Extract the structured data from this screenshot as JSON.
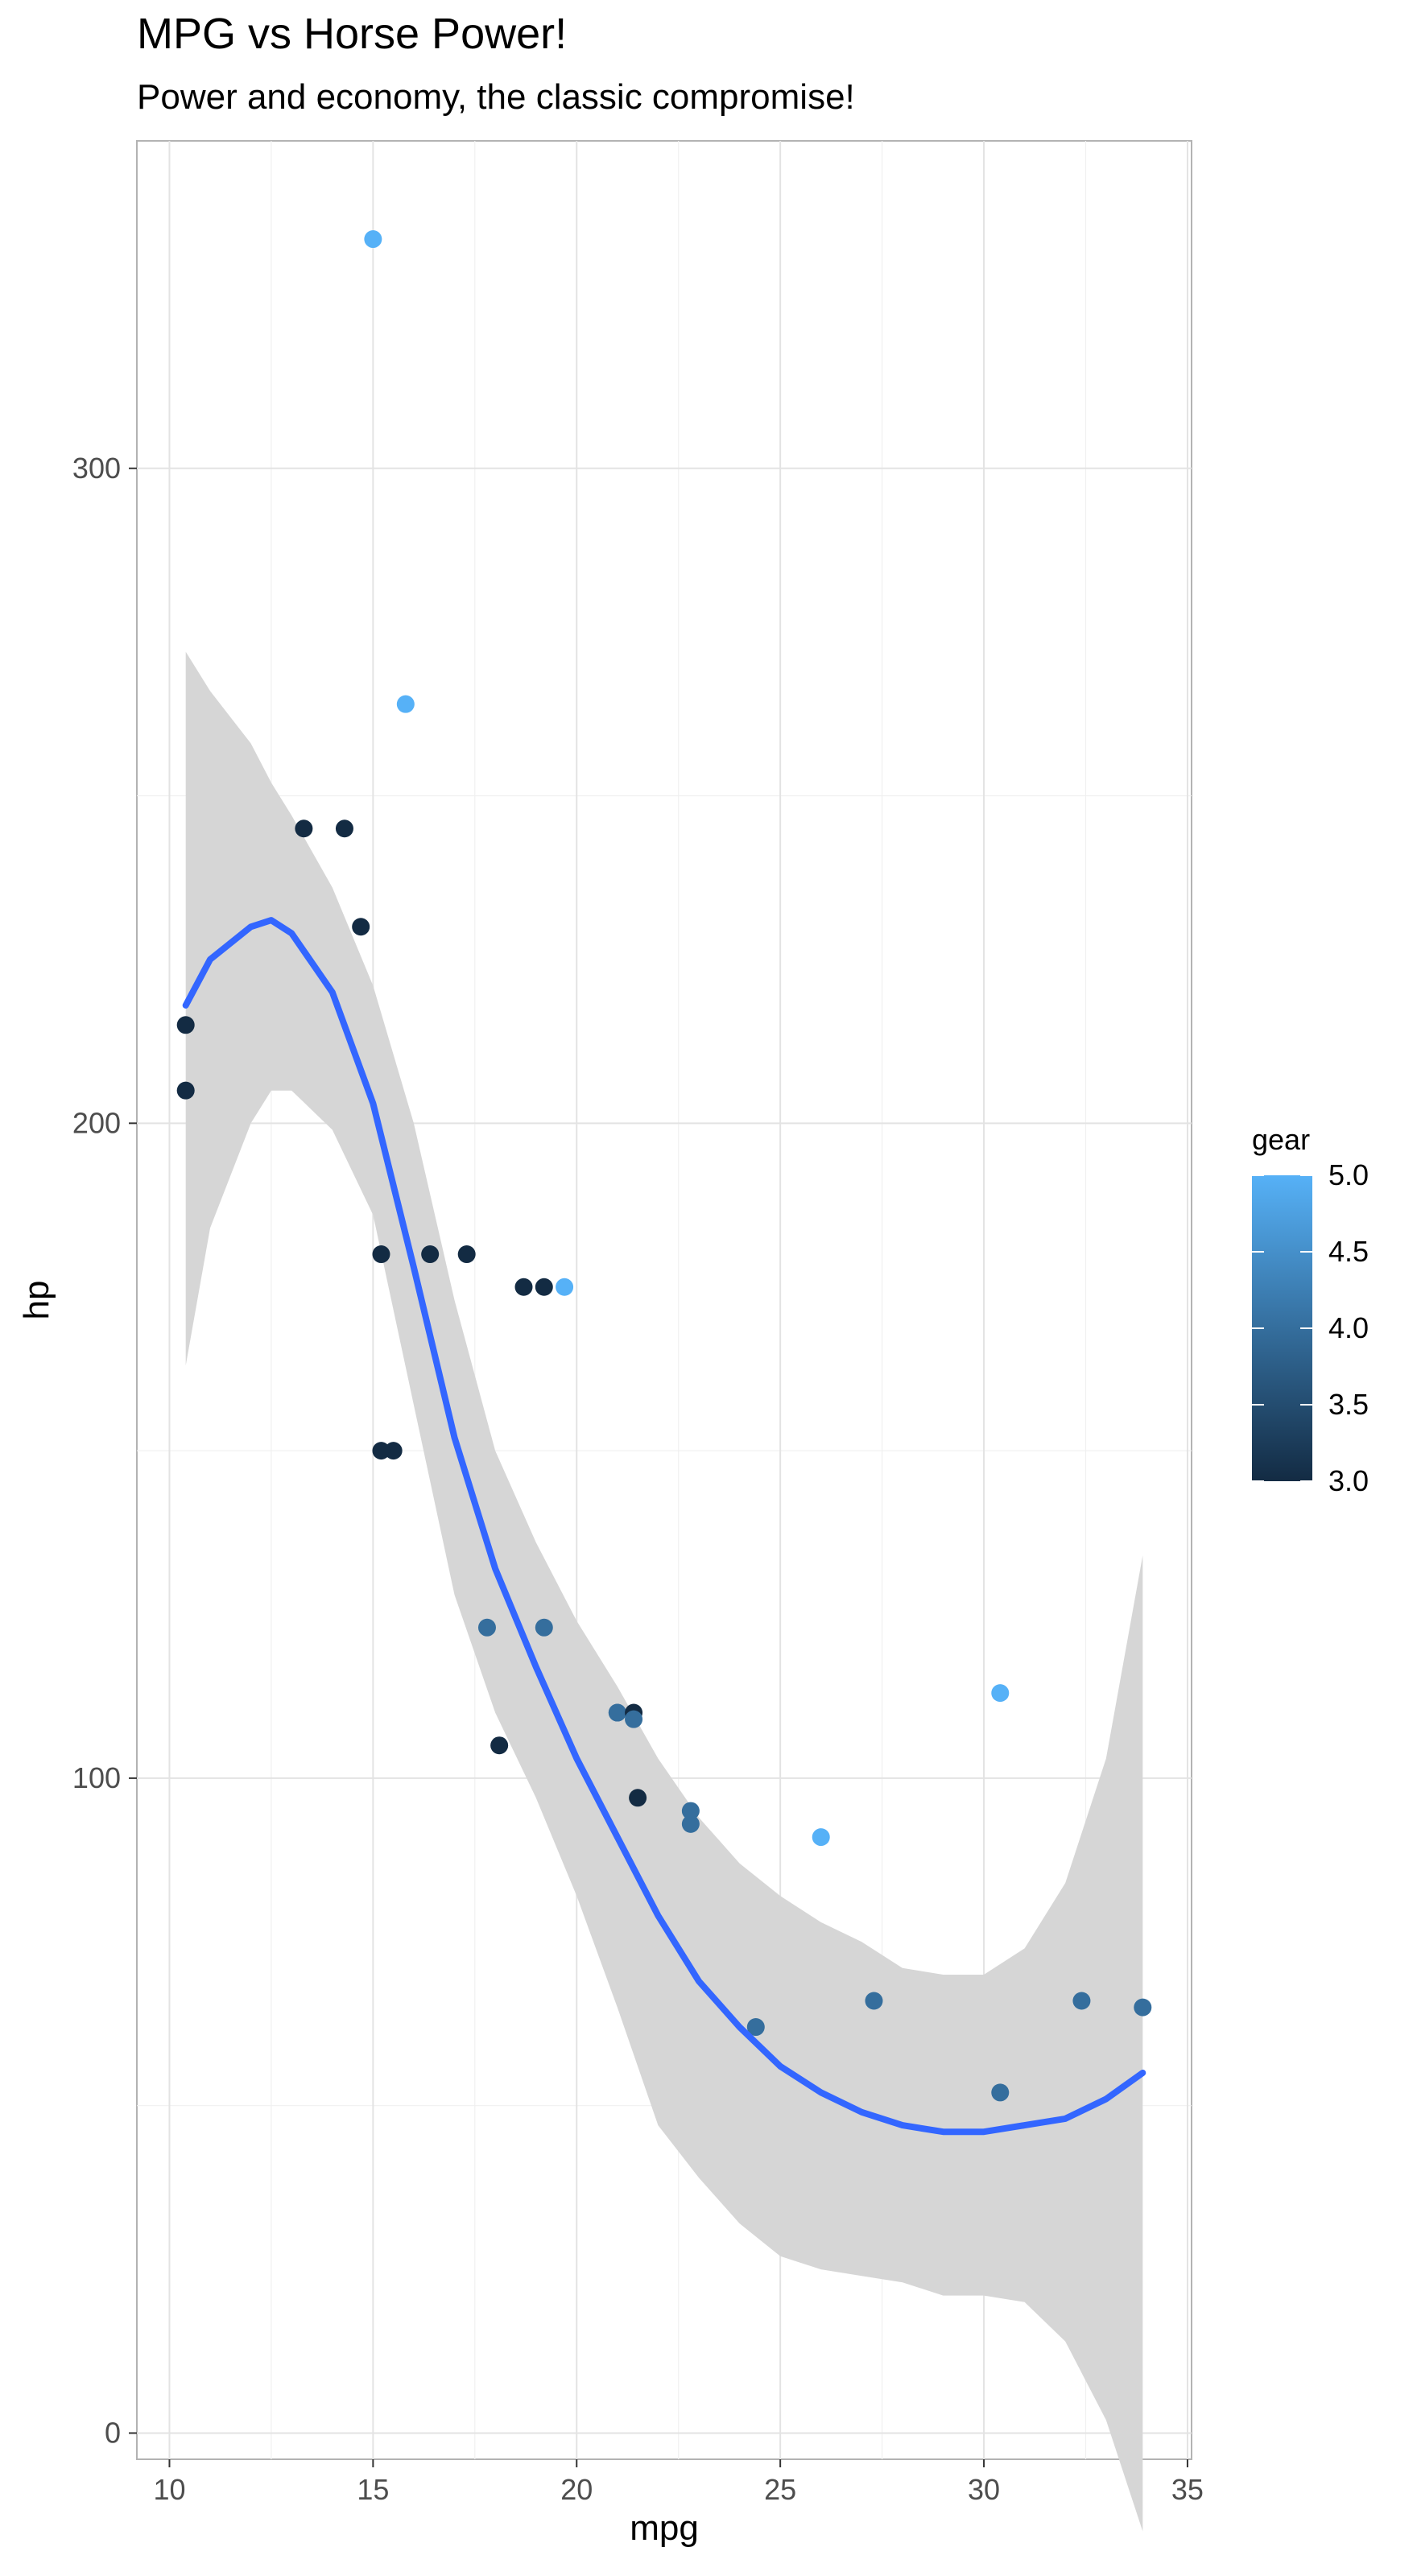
{
  "chart_data": {
    "type": "scatter",
    "title": "MPG vs Horse Power!",
    "subtitle": "Power and economy, the classic compromise!",
    "xlabel": "mpg",
    "ylabel": "hp",
    "xlim": [
      9.2,
      35.1
    ],
    "ylim": [
      -4,
      350
    ],
    "x_ticks": [
      10,
      15,
      20,
      25,
      30,
      35
    ],
    "y_ticks": [
      0,
      100,
      200,
      300
    ],
    "grid": true,
    "legend": {
      "title": "gear",
      "position": "right",
      "type": "colorbar",
      "range": [
        3.0,
        5.0
      ],
      "labels": [
        "5.0",
        "4.5",
        "4.0",
        "3.5",
        "3.0"
      ],
      "colors": {
        "low": "#132b43",
        "high": "#56b1f7"
      }
    },
    "points": [
      {
        "x": 21.0,
        "y": 110,
        "gear": 4
      },
      {
        "x": 21.0,
        "y": 110,
        "gear": 4
      },
      {
        "x": 22.8,
        "y": 93,
        "gear": 4
      },
      {
        "x": 21.4,
        "y": 110,
        "gear": 3
      },
      {
        "x": 18.7,
        "y": 175,
        "gear": 3
      },
      {
        "x": 18.1,
        "y": 105,
        "gear": 3
      },
      {
        "x": 14.3,
        "y": 245,
        "gear": 3
      },
      {
        "x": 24.4,
        "y": 62,
        "gear": 4
      },
      {
        "x": 22.8,
        "y": 95,
        "gear": 4
      },
      {
        "x": 19.2,
        "y": 123,
        "gear": 4
      },
      {
        "x": 17.8,
        "y": 123,
        "gear": 4
      },
      {
        "x": 16.4,
        "y": 180,
        "gear": 3
      },
      {
        "x": 17.3,
        "y": 180,
        "gear": 3
      },
      {
        "x": 15.2,
        "y": 180,
        "gear": 3
      },
      {
        "x": 10.4,
        "y": 205,
        "gear": 3
      },
      {
        "x": 10.4,
        "y": 215,
        "gear": 3
      },
      {
        "x": 14.7,
        "y": 230,
        "gear": 3
      },
      {
        "x": 32.4,
        "y": 66,
        "gear": 4
      },
      {
        "x": 30.4,
        "y": 52,
        "gear": 4
      },
      {
        "x": 33.9,
        "y": 65,
        "gear": 4
      },
      {
        "x": 21.5,
        "y": 97,
        "gear": 3
      },
      {
        "x": 15.5,
        "y": 150,
        "gear": 3
      },
      {
        "x": 15.2,
        "y": 150,
        "gear": 3
      },
      {
        "x": 13.3,
        "y": 245,
        "gear": 3
      },
      {
        "x": 19.2,
        "y": 175,
        "gear": 3
      },
      {
        "x": 27.3,
        "y": 66,
        "gear": 4
      },
      {
        "x": 26.0,
        "y": 91,
        "gear": 5
      },
      {
        "x": 30.4,
        "y": 113,
        "gear": 5
      },
      {
        "x": 15.8,
        "y": 264,
        "gear": 5
      },
      {
        "x": 19.7,
        "y": 175,
        "gear": 5
      },
      {
        "x": 15.0,
        "y": 335,
        "gear": 5
      },
      {
        "x": 21.4,
        "y": 109,
        "gear": 4
      }
    ],
    "smooth": {
      "color": "#3366ff",
      "ribbon_color": "#d6d6d6",
      "x": [
        10.4,
        11.0,
        12.0,
        12.5,
        13.0,
        14.0,
        15.0,
        16.0,
        17.0,
        18.0,
        19.0,
        20.0,
        21.0,
        22.0,
        23.0,
        24.0,
        25.0,
        26.0,
        27.0,
        28.0,
        29.0,
        30.0,
        31.0,
        32.0,
        33.0,
        33.9
      ],
      "y": [
        218,
        225,
        230,
        231,
        229,
        220,
        203,
        178,
        152,
        132,
        117,
        103,
        91,
        79,
        69,
        62,
        56,
        52,
        49,
        47,
        46,
        46,
        47,
        48,
        51,
        55
      ],
      "upper": [
        272,
        266,
        258,
        252,
        247,
        236,
        221,
        200,
        173,
        150,
        136,
        124,
        114,
        103,
        94,
        87,
        82,
        78,
        75,
        71,
        70,
        70,
        74,
        84,
        103,
        134
      ],
      "lower": [
        163,
        184,
        200,
        205,
        205,
        199,
        186,
        157,
        128,
        110,
        97,
        82,
        65,
        47,
        39,
        32,
        27,
        25,
        24,
        23,
        21,
        21,
        20,
        14,
        2,
        -15
      ]
    }
  }
}
